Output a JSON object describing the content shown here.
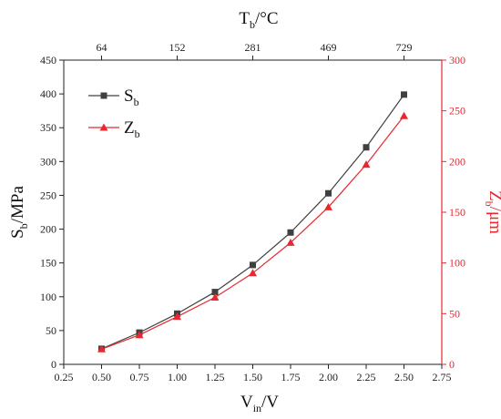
{
  "chart_data": {
    "type": "line",
    "title": "",
    "x": [
      0.5,
      0.75,
      1.0,
      1.25,
      1.5,
      1.75,
      2.0,
      2.25,
      2.5
    ],
    "xlim": [
      0.25,
      2.75
    ],
    "xticks": [
      "0.25",
      "0.50",
      "0.75",
      "1.00",
      "1.25",
      "1.50",
      "1.75",
      "2.00",
      "2.25",
      "2.50",
      "2.75"
    ],
    "xlabel": {
      "main": "V",
      "sub": "in",
      "unit": "/V"
    },
    "top_axis": {
      "label": {
        "main": "T",
        "sub": "b",
        "unit": "/°C"
      },
      "ticks": [
        {
          "x": 0.5,
          "label": "64"
        },
        {
          "x": 1.0,
          "label": "152"
        },
        {
          "x": 1.5,
          "label": "281"
        },
        {
          "x": 2.0,
          "label": "469"
        },
        {
          "x": 2.5,
          "label": "729"
        }
      ]
    },
    "ylabel_left": {
      "main": "S",
      "sub": "b",
      "unit": "/MPa"
    },
    "ylim_left": [
      0,
      450
    ],
    "yticks_left": [
      "0",
      "50",
      "100",
      "150",
      "200",
      "250",
      "300",
      "350",
      "400",
      "450"
    ],
    "ylabel_right": {
      "main": "Z",
      "sub": "b",
      "unit": "/μm"
    },
    "ylim_right": [
      0,
      300
    ],
    "yticks_right": [
      "0",
      "50",
      "100",
      "150",
      "200",
      "250",
      "300"
    ],
    "series": [
      {
        "name": "S",
        "sub": "b",
        "axis": "left",
        "marker": "square",
        "color": "#404040",
        "values": [
          23,
          47,
          75,
          107,
          147,
          195,
          253,
          321,
          399
        ]
      },
      {
        "name": "Z",
        "sub": "b",
        "axis": "right",
        "marker": "triangle",
        "color": "#e8282e",
        "values": [
          15,
          29,
          47,
          66,
          90,
          120,
          155,
          197,
          245
        ]
      }
    ],
    "legend": "top-left",
    "grid": false
  }
}
